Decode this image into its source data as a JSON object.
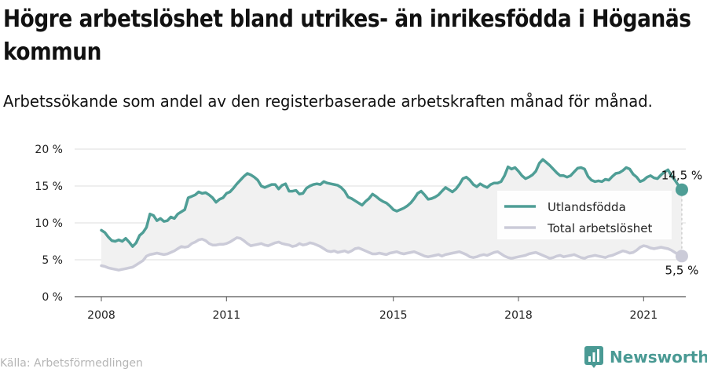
{
  "title": "Högre arbetslöshet bland utrikes- än inrikesfödda i Höganäs kommun",
  "subtitle": "Arbetssökande som andel av den registerbaserade arbetskraften månad för månad.",
  "source": "Källa: Arbetsförmedlingen",
  "brand": "Newsworthy",
  "colors": {
    "utland": "#4f9e96",
    "total": "#cbcbd8",
    "band": "#f1f1f1",
    "grid": "#dddddd",
    "brand": "#4a9a94"
  },
  "chart_data": {
    "type": "line",
    "ylim": [
      0,
      20
    ],
    "yticks": [
      0,
      5,
      10,
      15,
      20
    ],
    "ytick_labels": [
      "0 %",
      "5 %",
      "10 %",
      "15 %",
      "20 %"
    ],
    "xticks": [
      2008,
      2011,
      2015,
      2018,
      2021
    ],
    "x_start": "2008-01",
    "x_end": "2021-12",
    "grid": true,
    "legend_position": "right",
    "series": [
      {
        "name": "Utlandsfödda",
        "end_label": "14,5 %",
        "values": [
          9.0,
          8.7,
          8.1,
          7.6,
          7.5,
          7.7,
          7.5,
          7.9,
          7.4,
          6.8,
          7.3,
          8.3,
          8.7,
          9.4,
          11.2,
          11.0,
          10.3,
          10.6,
          10.2,
          10.3,
          10.8,
          10.6,
          11.2,
          11.5,
          11.8,
          13.4,
          13.6,
          13.8,
          14.2,
          14.0,
          14.1,
          13.8,
          13.4,
          12.8,
          13.2,
          13.4,
          14.0,
          14.2,
          14.7,
          15.3,
          15.8,
          16.3,
          16.7,
          16.5,
          16.2,
          15.8,
          15.0,
          14.8,
          15.0,
          15.2,
          15.2,
          14.6,
          15.1,
          15.3,
          14.3,
          14.3,
          14.4,
          13.9,
          14.0,
          14.7,
          15.0,
          15.2,
          15.3,
          15.2,
          15.6,
          15.4,
          15.3,
          15.2,
          15.1,
          14.8,
          14.3,
          13.5,
          13.3,
          13.0,
          12.7,
          12.4,
          12.9,
          13.3,
          13.9,
          13.6,
          13.2,
          12.9,
          12.7,
          12.3,
          11.8,
          11.6,
          11.8,
          12.0,
          12.3,
          12.7,
          13.3,
          14.0,
          14.3,
          13.8,
          13.2,
          13.3,
          13.5,
          13.8,
          14.3,
          14.8,
          14.5,
          14.2,
          14.6,
          15.2,
          16.0,
          16.2,
          15.8,
          15.2,
          14.9,
          15.3,
          15.0,
          14.8,
          15.2,
          15.4,
          15.4,
          15.6,
          16.4,
          17.6,
          17.3,
          17.5,
          17.0,
          16.4,
          16.0,
          16.2,
          16.5,
          17.0,
          18.1,
          18.6,
          18.2,
          17.8,
          17.3,
          16.8,
          16.4,
          16.4,
          16.2,
          16.4,
          16.9,
          17.4,
          17.5,
          17.3,
          16.3,
          15.8,
          15.6,
          15.7,
          15.6,
          15.9,
          15.8,
          16.3,
          16.7,
          16.8,
          17.1,
          17.5,
          17.3,
          16.6,
          16.2,
          15.6,
          15.8,
          16.2,
          16.4,
          16.1,
          16.0,
          16.5,
          16.9,
          17.2,
          16.4,
          15.8,
          15.1,
          14.5
        ]
      },
      {
        "name": "Total arbetslöshet",
        "end_label": "5,5 %",
        "values": [
          4.2,
          4.1,
          3.9,
          3.8,
          3.7,
          3.6,
          3.7,
          3.8,
          3.9,
          4.0,
          4.3,
          4.6,
          4.9,
          5.5,
          5.7,
          5.8,
          5.9,
          5.8,
          5.7,
          5.8,
          6.0,
          6.2,
          6.5,
          6.8,
          6.7,
          6.8,
          7.2,
          7.4,
          7.7,
          7.8,
          7.6,
          7.2,
          7.0,
          7.0,
          7.1,
          7.1,
          7.2,
          7.4,
          7.7,
          8.0,
          7.9,
          7.6,
          7.2,
          6.9,
          7.0,
          7.1,
          7.2,
          7.0,
          6.9,
          7.1,
          7.3,
          7.4,
          7.2,
          7.1,
          7.0,
          6.8,
          6.9,
          7.2,
          7.0,
          7.1,
          7.3,
          7.2,
          7.0,
          6.8,
          6.5,
          6.2,
          6.1,
          6.2,
          6.0,
          6.1,
          6.2,
          6.0,
          6.2,
          6.5,
          6.6,
          6.4,
          6.2,
          6.0,
          5.8,
          5.8,
          5.9,
          5.8,
          5.7,
          5.9,
          6.0,
          6.1,
          5.9,
          5.8,
          5.9,
          6.0,
          6.1,
          5.9,
          5.7,
          5.5,
          5.4,
          5.5,
          5.6,
          5.7,
          5.5,
          5.7,
          5.8,
          5.9,
          6.0,
          6.1,
          5.9,
          5.7,
          5.4,
          5.3,
          5.4,
          5.6,
          5.7,
          5.6,
          5.8,
          6.0,
          6.1,
          5.8,
          5.5,
          5.3,
          5.2,
          5.3,
          5.4,
          5.5,
          5.6,
          5.8,
          5.9,
          6.0,
          5.8,
          5.6,
          5.4,
          5.2,
          5.3,
          5.5,
          5.6,
          5.4,
          5.5,
          5.6,
          5.7,
          5.5,
          5.3,
          5.2,
          5.4,
          5.5,
          5.6,
          5.5,
          5.4,
          5.3,
          5.5,
          5.6,
          5.8,
          6.0,
          6.2,
          6.1,
          5.9,
          6.0,
          6.3,
          6.7,
          6.9,
          6.8,
          6.6,
          6.5,
          6.6,
          6.7,
          6.6,
          6.5,
          6.3,
          6.0,
          5.7,
          5.5
        ]
      }
    ]
  }
}
